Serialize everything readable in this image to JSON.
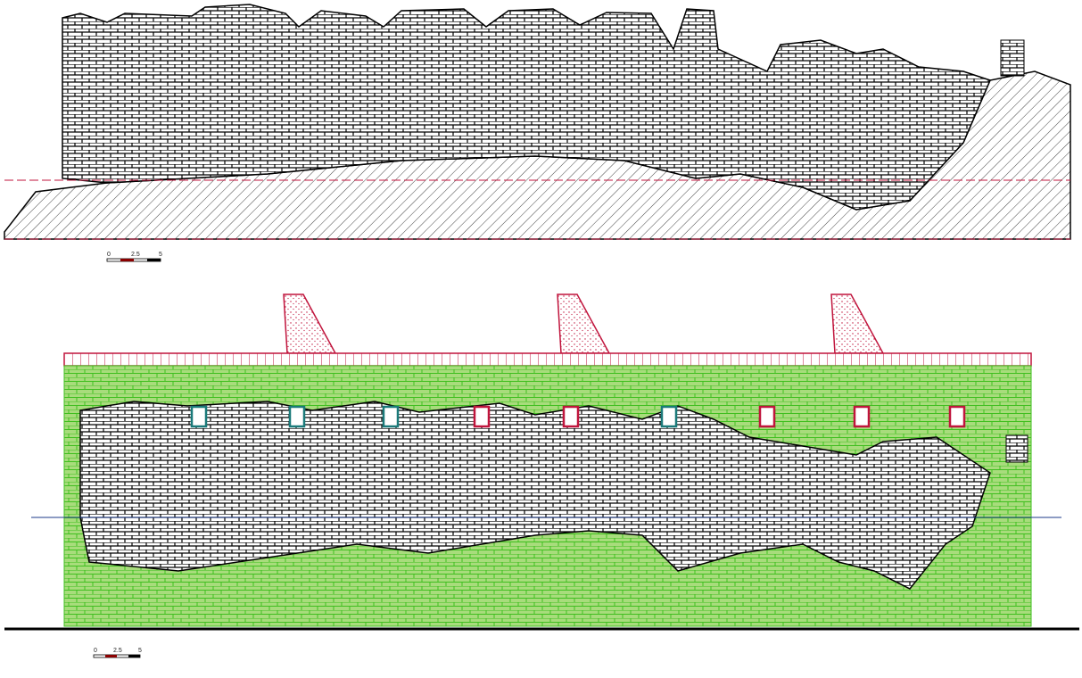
{
  "scale_bars": [
    {
      "labels": [
        "0",
        "2.5",
        "5"
      ]
    },
    {
      "labels": [
        "0",
        "2.5",
        "5"
      ]
    }
  ]
}
